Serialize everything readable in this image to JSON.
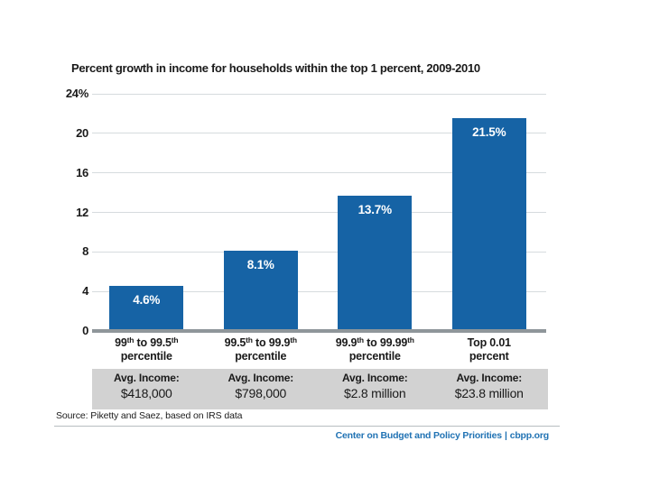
{
  "chart_data": {
    "type": "bar",
    "title": "Percent growth in income for households within the top 1 percent, 2009-2010",
    "xlabel": "",
    "ylabel": "",
    "ylim": [
      0,
      24
    ],
    "yticks": [
      0,
      4,
      8,
      12,
      16,
      20,
      24
    ],
    "ytick_labels": [
      "0",
      "4",
      "8",
      "12",
      "16",
      "20",
      "24%"
    ],
    "grid": true,
    "legend_position": "none",
    "bar_color": "#1663a5",
    "bar_label_color": "#ffffff",
    "categories": [
      "99th to 99.5th percentile",
      "99.5th to 99.9th percentile",
      "99.9th to 99.99th percentile",
      "Top 0.01 percent"
    ],
    "values": [
      4.6,
      8.1,
      13.7,
      21.5
    ],
    "bars": [
      {
        "label_line1": "99^th^ to 99.5^th^",
        "label_line2": "percentile",
        "value": 4.6,
        "value_label": "4.6%",
        "avg_income_label": "Avg. Income:",
        "avg_income_value": "$418,000"
      },
      {
        "label_line1": "99.5^th^ to 99.9^th^",
        "label_line2": "percentile",
        "value": 8.1,
        "value_label": "8.1%",
        "avg_income_label": "Avg. Income:",
        "avg_income_value": "$798,000"
      },
      {
        "label_line1": "99.9^th^ to 99.99^th^",
        "label_line2": "percentile",
        "value": 13.7,
        "value_label": "13.7%",
        "avg_income_label": "Avg. Income:",
        "avg_income_value": "$2.8 million"
      },
      {
        "label_line1": "Top 0.01",
        "label_line2": "percent",
        "value": 21.5,
        "value_label": "21.5%",
        "avg_income_label": "Avg. Income:",
        "avg_income_value": "$23.8 million"
      }
    ]
  },
  "footer": {
    "source": "Source: Piketty and Saez, based on IRS data",
    "brand": "Center on Budget and Policy Priorities",
    "separator": "|",
    "site": "cbpp.org"
  },
  "colors": {
    "bar_blue": "#1663a5",
    "gridline_gray": "#d6dbde",
    "baseline_gray": "#8f969a",
    "band_gray": "#d2d2d2",
    "footer_blue": "#2173b4",
    "text_black": "#1a1a1a",
    "background": "#ffffff"
  }
}
